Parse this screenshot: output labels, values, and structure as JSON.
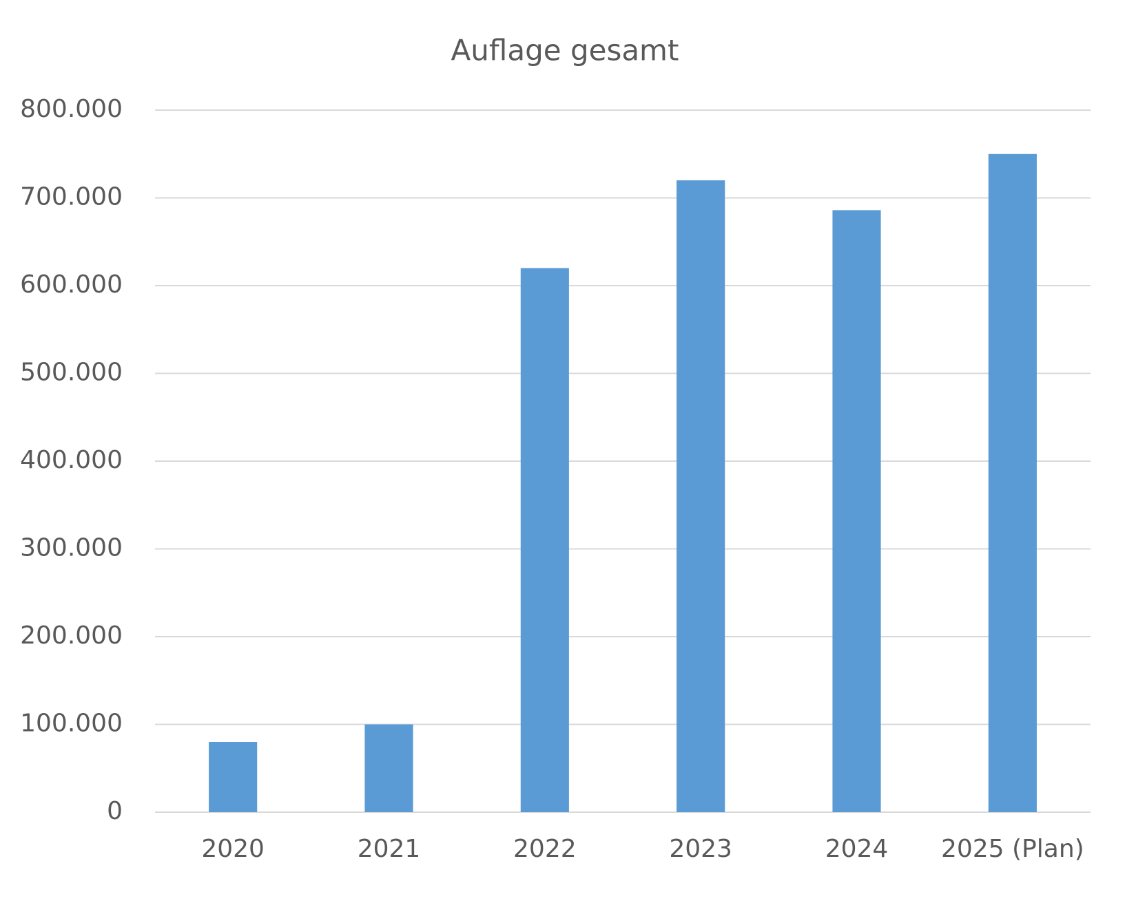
{
  "chart_data": {
    "type": "bar",
    "title": "Auflage gesamt",
    "categories": [
      "2020",
      "2021",
      "2022",
      "2023",
      "2024",
      "2025 (Plan)"
    ],
    "values": [
      80000,
      100000,
      620000,
      720000,
      686000,
      750000
    ],
    "color": "#5b9bd5",
    "ylim": [
      0,
      800000
    ],
    "yticks": [
      0,
      {
        "value": 100000,
        "label": "100.000"
      },
      {
        "value": 200000,
        "label": "200.000"
      },
      {
        "value": 300000,
        "label": "300.000"
      },
      {
        "value": 400000,
        "label": "400.000"
      },
      {
        "value": 500000,
        "label": "500.000"
      },
      {
        "value": 600000,
        "label": "600.000"
      },
      {
        "value": 700000,
        "label": "700.000"
      },
      {
        "value": 800000,
        "label": "800.000"
      }
    ],
    "grid": true
  }
}
